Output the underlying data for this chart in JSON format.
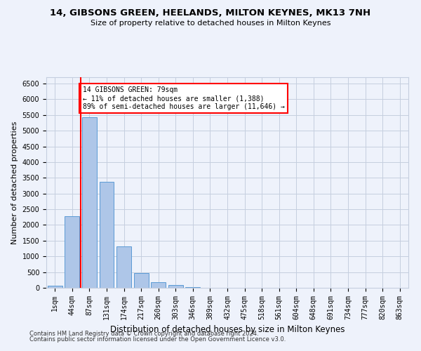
{
  "title": "14, GIBSONS GREEN, HEELANDS, MILTON KEYNES, MK13 7NH",
  "subtitle": "Size of property relative to detached houses in Milton Keynes",
  "xlabel": "Distribution of detached houses by size in Milton Keynes",
  "ylabel": "Number of detached properties",
  "categories": [
    "1sqm",
    "44sqm",
    "87sqm",
    "131sqm",
    "174sqm",
    "217sqm",
    "260sqm",
    "303sqm",
    "346sqm",
    "389sqm",
    "432sqm",
    "475sqm",
    "518sqm",
    "561sqm",
    "604sqm",
    "648sqm",
    "691sqm",
    "734sqm",
    "777sqm",
    "820sqm",
    "863sqm"
  ],
  "bar_values": [
    75,
    2270,
    5420,
    3380,
    1310,
    480,
    170,
    80,
    30,
    10,
    5,
    2,
    1,
    1,
    0,
    0,
    0,
    0,
    0,
    0,
    0
  ],
  "bar_color": "#aec6e8",
  "bar_edge_color": "#5b9bd5",
  "vline_color": "red",
  "vline_x": 1.5,
  "annotation_text": "14 GIBSONS GREEN: 79sqm\n← 11% of detached houses are smaller (1,388)\n89% of semi-detached houses are larger (11,646) →",
  "annotation_box_color": "white",
  "annotation_box_edge_color": "red",
  "ylim_max": 6700,
  "yticks": [
    0,
    500,
    1000,
    1500,
    2000,
    2500,
    3000,
    3500,
    4000,
    4500,
    5000,
    5500,
    6000,
    6500
  ],
  "footer_line1": "Contains HM Land Registry data © Crown copyright and database right 2024.",
  "footer_line2": "Contains public sector information licensed under the Open Government Licence v3.0.",
  "background_color": "#eef2fb",
  "grid_color": "#c5cedf",
  "title_fontsize": 9.5,
  "subtitle_fontsize": 8,
  "ylabel_fontsize": 8,
  "xlabel_fontsize": 8.5,
  "tick_fontsize": 7,
  "annotation_fontsize": 7,
  "footer_fontsize": 6
}
